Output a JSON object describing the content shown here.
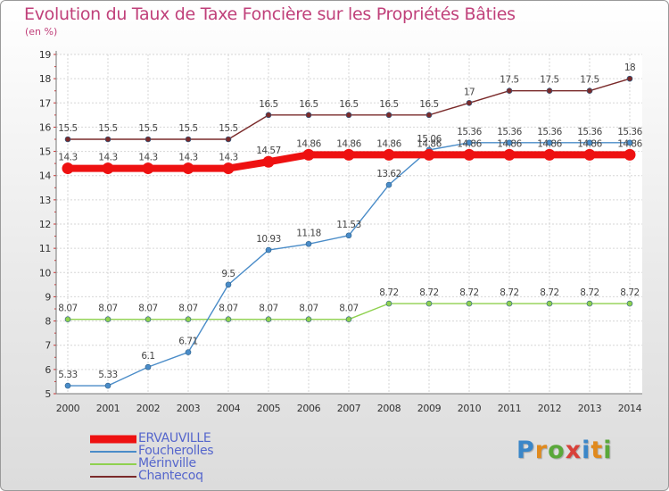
{
  "title": "Evolution du Taux de Taxe Foncière sur les Propriétés Bâties",
  "unit_label": "(en %)",
  "logo": {
    "letters": [
      "P",
      "r",
      "o",
      "x",
      "i",
      "t",
      "i"
    ],
    "colors": [
      "#3a86c8",
      "#e08a1e",
      "#5aa83a",
      "#d8413a",
      "#3a86c8",
      "#e08a1e",
      "#5aa83a"
    ]
  },
  "chart_data": {
    "type": "line",
    "title": "Evolution du Taux de Taxe Foncière sur les Propriétés Bâties",
    "ylabel": "(en %)",
    "xlabel": "",
    "x": [
      "2000",
      "2001",
      "2002",
      "2003",
      "2004",
      "2005",
      "2006",
      "2007",
      "2008",
      "2009",
      "2010",
      "2011",
      "2012",
      "2013",
      "2014"
    ],
    "ylim": [
      5,
      19
    ],
    "yticks": [
      "5",
      "6",
      "7",
      "8",
      "9",
      "10",
      "11",
      "12",
      "13",
      "14",
      "15",
      "16",
      "17",
      "18",
      "19"
    ],
    "grid": true,
    "legend_position": "bottom-left",
    "series": [
      {
        "name": "ERVAUVILLE",
        "color": "#ee1111",
        "emphasis": true,
        "values": [
          14.3,
          14.3,
          14.3,
          14.3,
          14.3,
          14.57,
          14.86,
          14.86,
          14.86,
          14.86,
          14.86,
          14.86,
          14.86,
          14.86,
          14.86
        ],
        "labels": [
          "14.3",
          "14.3",
          "14.3",
          "14.3",
          "14.3",
          "14.57",
          "14.86",
          "14.86",
          "14.86",
          "14.86",
          "14.86",
          "14.86",
          "14.86",
          "14.86",
          "14.86"
        ]
      },
      {
        "name": "Foucherolles",
        "color": "#4a8cc8",
        "emphasis": false,
        "values": [
          5.33,
          5.33,
          6.1,
          6.71,
          9.5,
          10.93,
          11.18,
          11.53,
          13.62,
          15.06,
          15.36,
          15.36,
          15.36,
          15.36,
          15.36
        ],
        "labels": [
          "5.33",
          "5.33",
          "6.1",
          "6.71",
          "9.5",
          "10.93",
          "11.18",
          "11.53",
          "13.62",
          "15.06",
          "15.36",
          "15.36",
          "15.36",
          "15.36",
          "15.36"
        ]
      },
      {
        "name": "Mérinville",
        "color": "#8fd14f",
        "emphasis": false,
        "values": [
          8.07,
          8.07,
          8.07,
          8.07,
          8.07,
          8.07,
          8.07,
          8.07,
          8.72,
          8.72,
          8.72,
          8.72,
          8.72,
          8.72,
          8.72
        ],
        "labels": [
          "8.07",
          "8.07",
          "8.07",
          "8.07",
          "8.07",
          "8.07",
          "8.07",
          "8.07",
          "8.72",
          "8.72",
          "8.72",
          "8.72",
          "8.72",
          "8.72",
          "8.72"
        ]
      },
      {
        "name": "Chantecoq",
        "color": "#7a2a2a",
        "emphasis": false,
        "values": [
          15.5,
          15.5,
          15.5,
          15.5,
          15.5,
          16.5,
          16.5,
          16.5,
          16.5,
          16.5,
          17,
          17.5,
          17.5,
          17.5,
          18
        ],
        "labels": [
          "15.5",
          "15.5",
          "15.5",
          "15.5",
          "15.5",
          "16.5",
          "16.5",
          "16.5",
          "16.5",
          "16.5",
          "17",
          "17.5",
          "17.5",
          "17.5",
          "18"
        ]
      }
    ]
  }
}
